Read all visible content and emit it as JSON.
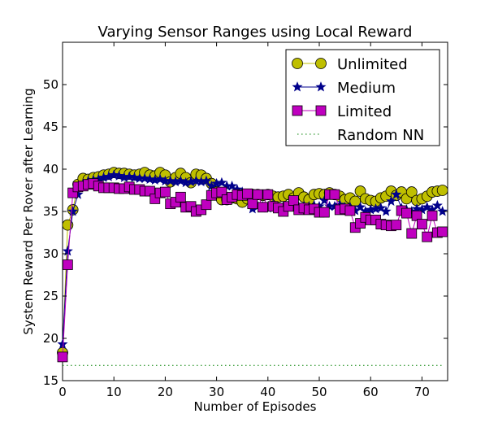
{
  "chart_data": {
    "type": "line",
    "title": "Varying Sensor Ranges using Local Reward",
    "xlabel": "Number of Episodes",
    "ylabel": "System Reward Per Rover after Learning",
    "xlim": [
      0,
      75
    ],
    "ylim": [
      15,
      55
    ],
    "xticks": [
      0,
      10,
      20,
      30,
      40,
      50,
      60,
      70
    ],
    "yticks": [
      15,
      20,
      25,
      30,
      35,
      40,
      45,
      50
    ],
    "grid": false,
    "legend_position": "top-right",
    "series": [
      {
        "name": "Unlimited",
        "color": "#bfbf00",
        "marker": "circle",
        "x": [
          0,
          1,
          2,
          3,
          4,
          5,
          6,
          7,
          8,
          9,
          10,
          11,
          12,
          13,
          14,
          15,
          16,
          17,
          18,
          19,
          20,
          21,
          22,
          23,
          24,
          25,
          26,
          27,
          28,
          29,
          30,
          31,
          32,
          33,
          34,
          35,
          36,
          37,
          38,
          39,
          40,
          41,
          42,
          43,
          44,
          45,
          46,
          47,
          48,
          49,
          50,
          51,
          52,
          53,
          54,
          55,
          56,
          57,
          58,
          59,
          60,
          61,
          62,
          63,
          64,
          65,
          66,
          67,
          68,
          69,
          70,
          71,
          72,
          73,
          74
        ],
        "values": [
          18.3,
          33.4,
          35.2,
          38.2,
          38.9,
          38.8,
          39.0,
          39.1,
          39.3,
          39.4,
          39.6,
          39.5,
          39.5,
          39.4,
          39.3,
          39.4,
          39.6,
          39.3,
          39.2,
          39.6,
          39.3,
          38.5,
          39.0,
          39.5,
          39.0,
          38.4,
          39.4,
          39.3,
          38.9,
          38.3,
          37.3,
          36.4,
          36.4,
          36.6,
          36.5,
          36.1,
          36.5,
          37.0,
          37.0,
          36.9,
          37.0,
          36.8,
          36.7,
          36.8,
          37.0,
          36.6,
          37.2,
          36.7,
          36.4,
          37.0,
          37.1,
          37.0,
          37.2,
          37.0,
          36.8,
          36.4,
          36.6,
          36.2,
          37.4,
          36.5,
          36.3,
          36.2,
          36.6,
          36.8,
          37.4,
          36.9,
          37.3,
          36.5,
          37.3,
          36.3,
          36.5,
          36.8,
          37.3,
          37.4,
          37.5
        ]
      },
      {
        "name": "Medium",
        "color": "#00008b",
        "marker": "star",
        "x": [
          0,
          1,
          2,
          3,
          4,
          5,
          6,
          7,
          8,
          9,
          10,
          11,
          12,
          13,
          14,
          15,
          16,
          17,
          18,
          19,
          20,
          21,
          22,
          23,
          24,
          25,
          26,
          27,
          28,
          29,
          30,
          31,
          32,
          33,
          34,
          35,
          36,
          37,
          38,
          39,
          40,
          41,
          42,
          43,
          44,
          45,
          46,
          47,
          48,
          49,
          50,
          51,
          52,
          53,
          54,
          55,
          56,
          57,
          58,
          59,
          60,
          61,
          62,
          63,
          64,
          65,
          66,
          67,
          68,
          69,
          70,
          71,
          72,
          73,
          74
        ],
        "values": [
          19.3,
          30.3,
          35.0,
          37.0,
          38.3,
          38.6,
          38.7,
          38.8,
          39.0,
          39.1,
          39.3,
          39.2,
          39.0,
          39.1,
          39.0,
          38.9,
          38.9,
          38.8,
          38.7,
          38.8,
          38.6,
          38.6,
          38.5,
          38.6,
          38.4,
          38.5,
          38.6,
          38.5,
          38.6,
          38.0,
          38.3,
          38.4,
          38.0,
          38.0,
          37.6,
          37.3,
          37.0,
          35.3,
          35.6,
          35.6,
          35.4,
          35.8,
          35.4,
          35.6,
          35.6,
          35.6,
          35.5,
          35.6,
          35.6,
          35.7,
          35.6,
          36.3,
          35.6,
          35.6,
          35.8,
          35.5,
          35.5,
          35.1,
          35.5,
          35.0,
          35.2,
          35.3,
          35.4,
          35.0,
          36.2,
          37.0,
          35.4,
          35.2,
          35.0,
          35.3,
          35.2,
          35.5,
          35.2,
          35.7,
          35.0
        ]
      },
      {
        "name": "Limited",
        "color": "#bf00bf",
        "marker": "square",
        "x": [
          0,
          1,
          2,
          3,
          4,
          5,
          6,
          7,
          8,
          9,
          10,
          11,
          12,
          13,
          14,
          15,
          16,
          17,
          18,
          19,
          20,
          21,
          22,
          23,
          24,
          25,
          26,
          27,
          28,
          29,
          30,
          31,
          32,
          33,
          34,
          35,
          36,
          37,
          38,
          39,
          40,
          41,
          42,
          43,
          44,
          45,
          46,
          47,
          48,
          49,
          50,
          51,
          52,
          53,
          54,
          55,
          56,
          57,
          58,
          59,
          60,
          61,
          62,
          63,
          64,
          65,
          66,
          67,
          68,
          69,
          70,
          71,
          72,
          73,
          74
        ],
        "values": [
          17.8,
          28.7,
          37.2,
          37.9,
          38.0,
          38.2,
          38.3,
          38.0,
          37.8,
          37.8,
          37.8,
          37.7,
          37.7,
          37.9,
          37.6,
          37.6,
          37.4,
          37.4,
          36.5,
          37.2,
          37.3,
          35.9,
          36.1,
          36.7,
          35.5,
          35.6,
          35.0,
          35.2,
          35.8,
          36.9,
          37.2,
          37.3,
          36.4,
          36.7,
          37.0,
          36.9,
          37.1,
          35.9,
          37.0,
          35.5,
          37.0,
          35.6,
          35.4,
          35.0,
          35.6,
          36.3,
          35.2,
          35.4,
          35.2,
          35.3,
          34.9,
          34.9,
          37.0,
          37.0,
          35.2,
          35.3,
          35.1,
          33.1,
          33.6,
          34.3,
          34.0,
          34.0,
          33.5,
          33.4,
          33.3,
          33.4,
          35.1,
          34.8,
          32.4,
          34.5,
          33.5,
          32.0,
          34.5,
          32.5,
          32.6
        ]
      },
      {
        "name": "Random NN",
        "color": "#008000",
        "marker": "none",
        "line_style": "dotted",
        "x": [
          0,
          74
        ],
        "values": [
          16.8,
          16.8
        ]
      }
    ]
  }
}
